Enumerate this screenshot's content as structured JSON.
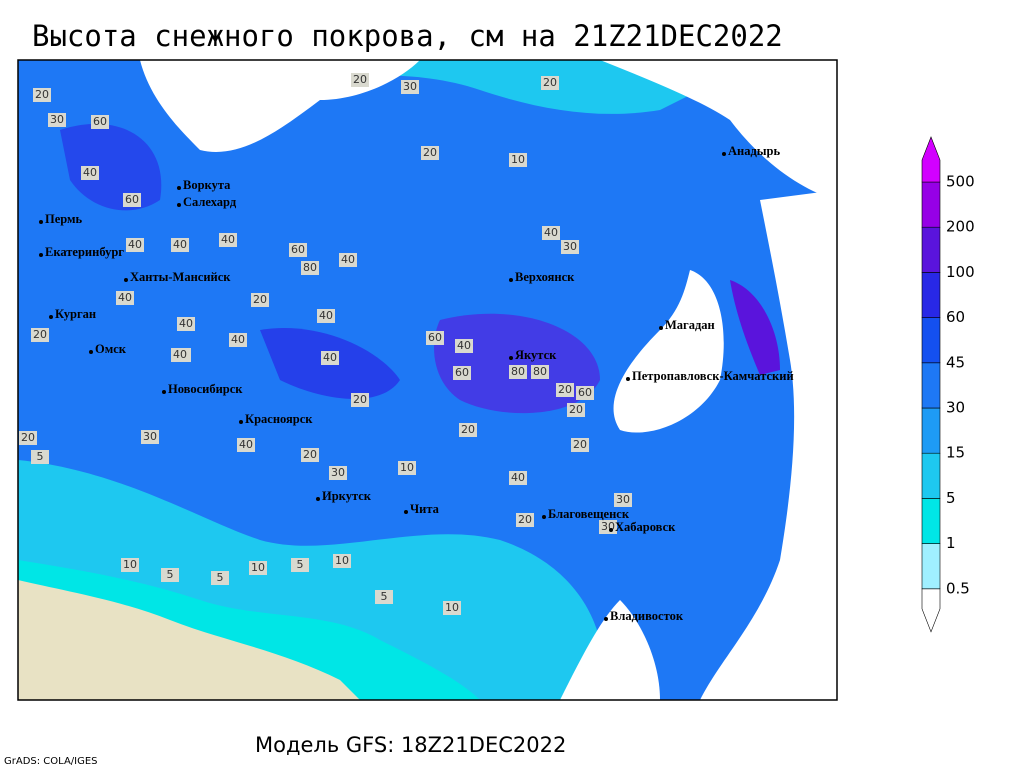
{
  "title": "Высота снежного покрова, см на 21Z21DEC2022",
  "footer": "Модель GFS: 18Z21DEC2022",
  "credit": "GrADS: COLA/IGES",
  "legend": {
    "levels": [
      0.5,
      1,
      5,
      15,
      30,
      45,
      60,
      100,
      200,
      500
    ],
    "colors": [
      "#ffffff",
      "#a0f0ff",
      "#00e6e6",
      "#1ec8f0",
      "#1e9bf5",
      "#1e78f5",
      "#1450f0",
      "#2828e6",
      "#5a14dc",
      "#9600e6",
      "#d200ff"
    ]
  },
  "cities": [
    "Пермь",
    "Екатеринбург",
    "Ханты-Мансийск",
    "Воркута",
    "Салехард",
    "Курган",
    "Омск",
    "Новосибирск",
    "Красноярск",
    "Иркутск",
    "Чита",
    "Благовещенск",
    "Хабаровск",
    "Владивосток",
    "Верхоянск",
    "Якутск",
    "Магадан",
    "Петропавловск-Камчатский",
    "Анадырь"
  ],
  "contour_labels": [
    20,
    30,
    20,
    20,
    30,
    60,
    40,
    10,
    20,
    40,
    60,
    40,
    40,
    30,
    40,
    80,
    60,
    40,
    40,
    40,
    40,
    20,
    20,
    40,
    40,
    60,
    40,
    40,
    60,
    80,
    80,
    60,
    40,
    20,
    30,
    40,
    20,
    30,
    20,
    10,
    5,
    10,
    5,
    10,
    5,
    5,
    10,
    20,
    20,
    30,
    20,
    5,
    10,
    20,
    20,
    40,
    30
  ]
}
